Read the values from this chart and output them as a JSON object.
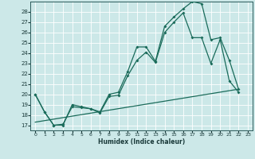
{
  "title": "",
  "xlabel": "Humidex (Indice chaleur)",
  "bg_color": "#cce8e8",
  "grid_color": "#b0d4d4",
  "line_color": "#1a6b5a",
  "xlim": [
    -0.5,
    23.5
  ],
  "ylim": [
    16.5,
    29.0
  ],
  "xticks": [
    0,
    1,
    2,
    3,
    4,
    5,
    6,
    7,
    8,
    9,
    10,
    11,
    12,
    13,
    14,
    15,
    16,
    17,
    18,
    19,
    20,
    21,
    22,
    23
  ],
  "yticks": [
    17,
    18,
    19,
    20,
    21,
    22,
    23,
    24,
    25,
    26,
    27,
    28
  ],
  "line1_x": [
    0,
    1,
    2,
    3,
    4,
    5,
    6,
    7,
    8,
    9,
    10,
    11,
    12,
    13,
    14,
    15,
    16,
    17,
    18,
    19,
    20,
    21,
    22
  ],
  "line1_y": [
    20,
    18.3,
    17,
    17.0,
    19.0,
    18.8,
    18.6,
    18.3,
    20.0,
    20.2,
    22.2,
    24.6,
    24.6,
    23.2,
    26.6,
    27.5,
    28.3,
    29.0,
    28.8,
    25.3,
    25.5,
    23.3,
    20.5
  ],
  "line2_x": [
    0,
    1,
    2,
    3,
    4,
    5,
    6,
    7,
    8,
    9,
    10,
    11,
    12,
    13,
    14,
    15,
    16,
    17,
    18,
    19,
    20,
    21,
    22
  ],
  "line2_y": [
    20,
    18.3,
    17,
    17.1,
    18.8,
    18.7,
    18.6,
    18.2,
    19.8,
    19.9,
    21.8,
    23.3,
    24.1,
    23.1,
    26.0,
    27.0,
    27.9,
    25.5,
    25.5,
    23.0,
    25.3,
    21.3,
    20.2
  ],
  "line3_x": [
    0,
    22
  ],
  "line3_y": [
    17.3,
    20.5
  ]
}
